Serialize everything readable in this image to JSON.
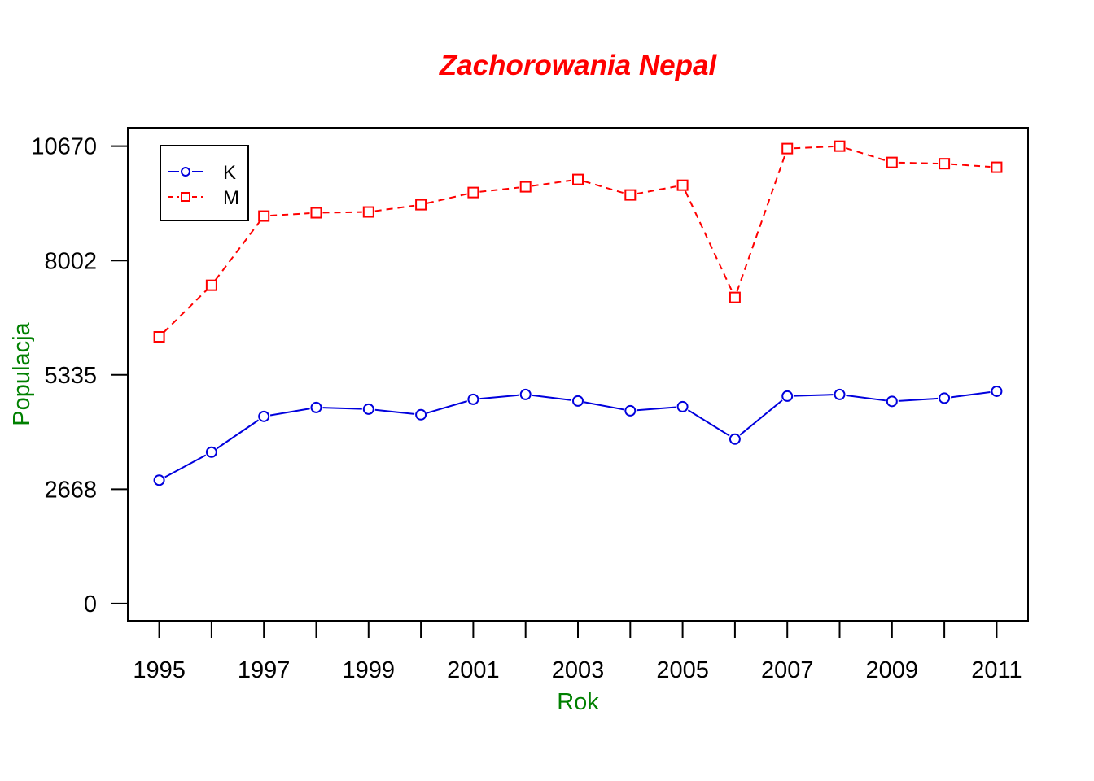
{
  "chart_data": {
    "type": "line",
    "title": "Zachorowania Nepal",
    "xlabel": "Rok",
    "ylabel": "Populacja",
    "x": [
      1995,
      1996,
      1997,
      1998,
      1999,
      2000,
      2001,
      2002,
      2003,
      2004,
      2005,
      2006,
      2007,
      2008,
      2009,
      2010,
      2011
    ],
    "x_tick_labels": [
      "1995",
      "1997",
      "1999",
      "2001",
      "2003",
      "2005",
      "2007",
      "2009",
      "2011"
    ],
    "y_ticks": [
      0,
      2668,
      5335,
      8002,
      10670
    ],
    "y_tick_labels": [
      "0",
      "2668",
      "5335",
      "8002",
      "10670"
    ],
    "xlim": [
      1994.4,
      2011.6
    ],
    "ylim": [
      -400,
      11100
    ],
    "grid": false,
    "legend_position": "top-left",
    "series": [
      {
        "name": "K",
        "color": "#0000dd",
        "line_style": "solid",
        "marker": "circle",
        "values": [
          2878,
          3533,
          4366,
          4574,
          4536,
          4405,
          4764,
          4877,
          4726,
          4498,
          4593,
          3836,
          4839,
          4877,
          4717,
          4792,
          4952
        ]
      },
      {
        "name": "M",
        "color": "#ff0000",
        "line_style": "dashed",
        "marker": "square",
        "values": [
          6223,
          7425,
          9040,
          9116,
          9135,
          9305,
          9589,
          9722,
          9893,
          9532,
          9759,
          7141,
          10614,
          10670,
          10291,
          10262,
          10178
        ]
      }
    ]
  }
}
